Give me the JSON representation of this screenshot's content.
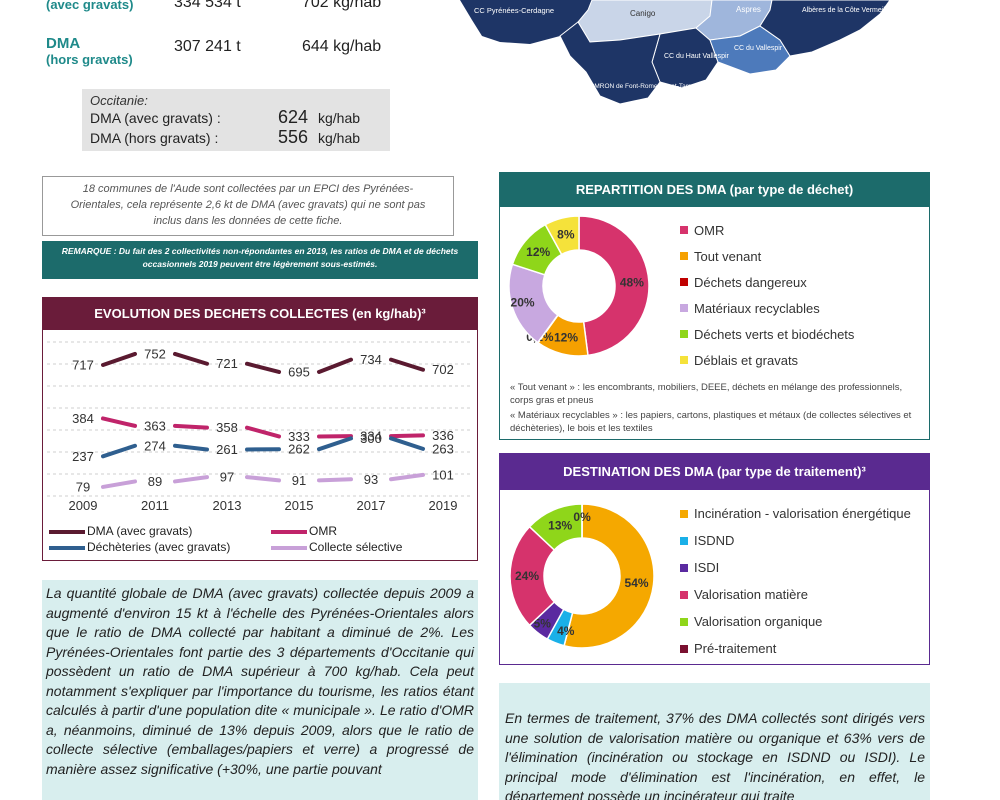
{
  "stats": {
    "row1": {
      "label": "(avec gravats)",
      "tonnes": "334 534 t",
      "ratio": "702 kg/hab"
    },
    "row2": {
      "label": "DMA",
      "sublabel": "(hors gravats)",
      "tonnes": "307 241 t",
      "ratio": "644 kg/hab"
    }
  },
  "occitanie": {
    "title": "Occitanie:",
    "line1_label": "DMA (avec gravats) :",
    "line1_value": "624",
    "line1_unit": "kg/hab",
    "line2_label": "DMA (hors gravats) :",
    "line2_value": "556",
    "line2_unit": "kg/hab"
  },
  "map": {
    "labels": [
      "CC Pyrénées-Cerdagne",
      "Canigo",
      "Aspres",
      "Albères de la Côte Vermeille et de l'Illibéris",
      "CC du Haut Vallespir",
      "CC du Vallespir",
      "SMRON de Font-Romeu-Egat-Targassonne"
    ]
  },
  "note_text": "18 communes de l'Aude sont collectées par un EPCI des Pyrénées-Orientales, cela représente 2,6 kt de DMA (avec gravats) qui ne sont pas inclus dans les données de cette fiche.",
  "remark_text": "REMARQUE : Du fait des 2 collectivités non-répondantes en 2019, les ratios de DMA et de déchets occasionnels 2019 peuvent être légèrement sous-estimés.",
  "evolution": {
    "title": "EVOLUTION DES DECHETS COLLECTES (en kg/hab)³",
    "legend": [
      "DMA (avec gravats)",
      "OMR",
      "Déchèteries (avec gravats)",
      "Collecte sélective"
    ]
  },
  "repartition": {
    "title": "REPARTITION DES DMA (par type de déchet)",
    "legend": [
      "OMR",
      "Tout venant",
      "Déchets dangereux",
      "Matériaux recyclables",
      "Déchets verts et biodéchets",
      "Déblais et gravats"
    ],
    "note1": "« Tout venant » : les encombrants, mobiliers, DEEE, déchets en mélange des professionnels, corps gras et pneus",
    "note2": "« Matériaux recyclables » : les papiers, cartons, plastiques et métaux (de collectes sélectives et déchèteries), le bois et les textiles"
  },
  "destination": {
    "title": "DESTINATION DES DMA (par type de traitement)³",
    "legend": [
      "Incinération - valorisation énergétique",
      "ISDND",
      "ISDI",
      "Valorisation matière",
      "Valorisation organique",
      "Pré-traitement"
    ]
  },
  "paragraph_left": "La quantité globale de DMA (avec gravats) collectée depuis 2009 a augmenté d'environ 15 kt à l'échelle des Pyrénées-Orientales alors que le ratio de DMA collecté par habitant a diminué de 2%. Les Pyrénées-Orientales font partie des 3 départements d'Occitanie qui possèdent un ratio de DMA supérieur à 700 kg/hab. Cela peut notamment s'expliquer par l'importance du tourisme, les ratios étant calculés à partir d'une population dite « municipale ». Le ratio d'OMR a, néanmoins, diminué de 13% depuis 2009, alors que le ratio de collecte sélective (emballages/papiers et verre) a progressé de manière assez significative (+30%, une partie pouvant",
  "paragraph_right": "En termes de traitement, 37% des DMA collectés sont dirigés vers une solution de valorisation matière ou organique et 63% vers de l'élimination (incinération ou stockage en ISDND ou ISDI). Le principal mode d'élimination est l'incinération, en effet, le département possède un incinérateur qui traite",
  "chart_data": [
    {
      "type": "line",
      "title": "EVOLUTION DES DECHETS COLLECTES (en kg/hab)³",
      "x": [
        2009,
        2011,
        2013,
        2015,
        2017,
        2019
      ],
      "series": [
        {
          "name": "DMA (avec gravats)",
          "color": "#5a1a30",
          "values": [
            717,
            752,
            721,
            695,
            734,
            702
          ]
        },
        {
          "name": "OMR",
          "color": "#c0246a",
          "values": [
            384,
            363,
            358,
            333,
            334,
            336
          ]
        },
        {
          "name": "Déchèteries (avec gravats)",
          "color": "#2f5f8f",
          "values": [
            237,
            274,
            261,
            262,
            300,
            263
          ]
        },
        {
          "name": "Collecte sélective",
          "color": "#c8a0d8",
          "values": [
            79,
            89,
            97,
            91,
            93,
            101
          ]
        }
      ]
    },
    {
      "type": "pie",
      "title": "REPARTITION DES DMA (par type de déchet)",
      "categories": [
        "OMR",
        "Tout venant",
        "Déchets dangereux",
        "Matériaux recyclables",
        "Déchets verts et biodéchets",
        "Déblais et gravats"
      ],
      "values": [
        48,
        12,
        0.1,
        20,
        12,
        8
      ],
      "labels": [
        "48%",
        "12%",
        "0,1%",
        "20%",
        "12%",
        "8%"
      ],
      "colors": [
        "#d6336c",
        "#f5a000",
        "#c00000",
        "#c8a8e0",
        "#8fd61a",
        "#f5e23a"
      ]
    },
    {
      "type": "pie",
      "title": "DESTINATION DES DMA (par type de traitement)³",
      "categories": [
        "Incinération - valorisation énergétique",
        "ISDND",
        "ISDI",
        "Valorisation matière",
        "Valorisation organique",
        "Pré-traitement"
      ],
      "values": [
        54,
        4,
        5,
        24,
        13,
        0
      ],
      "labels": [
        "54%",
        "4%",
        "5%",
        "24%",
        "13%",
        "0%"
      ],
      "colors": [
        "#f5a800",
        "#1ab0e8",
        "#5a2aa0",
        "#d6336c",
        "#8fd61a",
        "#7a1030"
      ]
    }
  ]
}
